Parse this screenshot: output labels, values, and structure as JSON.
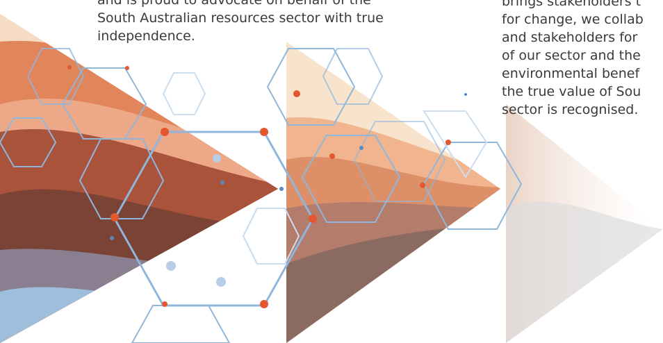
{
  "left_text": {
    "lines": [
      "and is proud to advocate on behalf of the",
      "South Australian resources sector with true",
      "independence."
    ]
  },
  "right_text": {
    "lines": [
      "brings stakeholders t",
      "for change, we collab",
      "and stakeholders for",
      "of our sector and the",
      "environmental benef",
      "the true value of Sou",
      "sector is recognised."
    ]
  }
}
